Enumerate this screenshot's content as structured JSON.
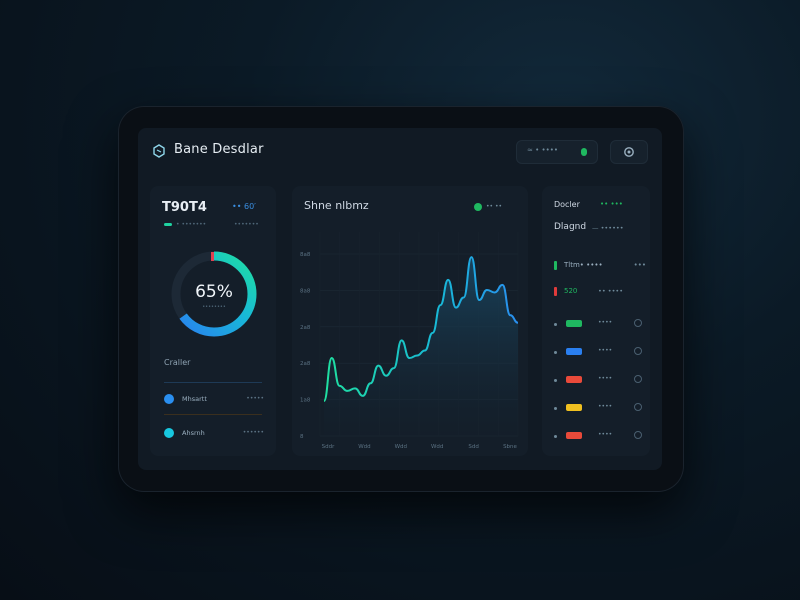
{
  "header": {
    "title": "Bane Desdlar",
    "status_text": "≈ • ••••",
    "status_color": "#1fb860"
  },
  "left_card": {
    "stat_value": "T90T4",
    "delta": "•• 60′",
    "sub_left": "• •••••••",
    "sub_right": "•••••••",
    "donut_percent": 65,
    "donut_label": "65%",
    "donut_caption": "••••••••",
    "section_label": "Craller",
    "legend": [
      {
        "label": "Mhsartt",
        "value": "•••••",
        "color": "#2a8ff0"
      },
      {
        "label": "Ahsrnh",
        "value": "••••••",
        "color": "#18c8e0"
      }
    ]
  },
  "chart": {
    "title": "Shne nlbmz",
    "chip_label": "•• ••",
    "chart_data": {
      "type": "line",
      "title": "Shne nlbmz",
      "y_ticks": [
        "8a8",
        "8a8",
        "2a8",
        "2a8",
        "1a8",
        "8"
      ],
      "x_ticks": [
        "Sddr",
        "Wdd",
        "Wdd",
        "Wdd",
        "Sdd",
        "Sbne"
      ],
      "series": [
        {
          "values": [
            4,
            38,
            16,
            12,
            14,
            8,
            18,
            32,
            24,
            30,
            52,
            38,
            40,
            44,
            58,
            80,
            100,
            78,
            86,
            118,
            84,
            92,
            90,
            96,
            72,
            66
          ],
          "color": "#19d7b0"
        }
      ],
      "ylim": [
        0,
        130
      ]
    }
  },
  "right_card": {
    "head": "Docler",
    "head_value": "•• •••",
    "sub": "Dlagnd",
    "sub_value": "— ••••••",
    "items": [
      {
        "label": "Tltm• ••••",
        "value": "",
        "color": "#1fb860",
        "extra": "•••"
      },
      {
        "label": "520",
        "value": "•• ••••",
        "color": "#e03b3b",
        "extra": ""
      }
    ],
    "rows": [
      {
        "color": "#1fb860",
        "value": "••••"
      },
      {
        "color": "#2a7ff0",
        "value": "••••"
      },
      {
        "color": "#e94a3a",
        "value": "••••"
      },
      {
        "color": "#f0c020",
        "value": "••••"
      },
      {
        "color": "#e94a3a",
        "value": "••••"
      }
    ]
  }
}
